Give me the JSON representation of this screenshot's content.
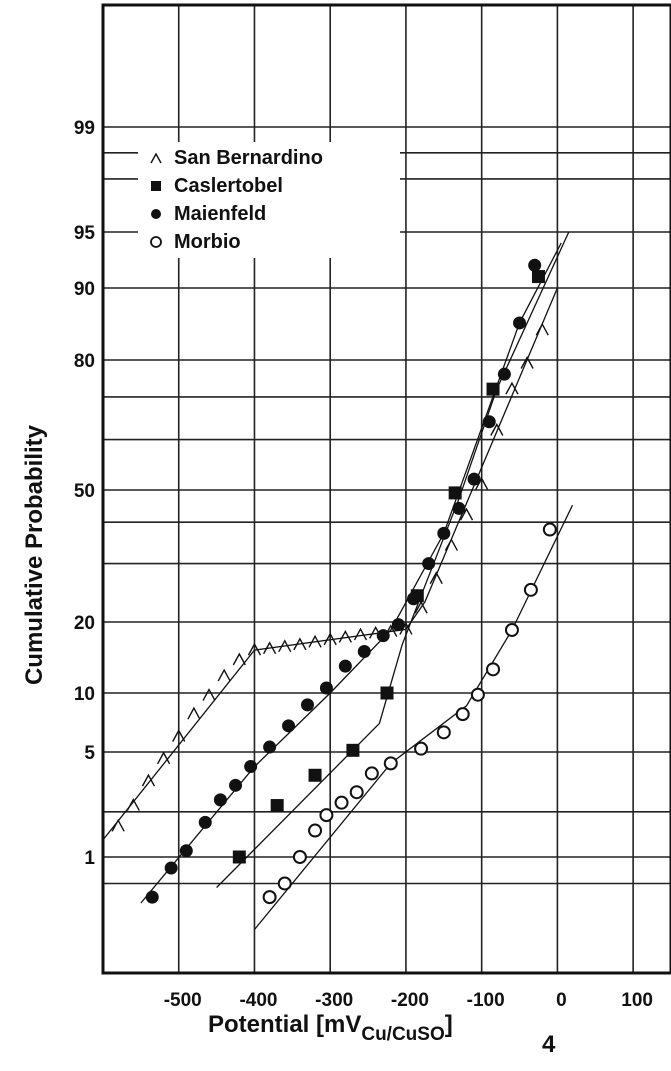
{
  "chart_data": {
    "type": "scatter",
    "xlabel": "Potential  [mV",
    "xlabel_sub": "Cu/CuSO",
    "xlabel_sub2": "4",
    "xlabel_close": "]",
    "ylabel": "Cumulative Probability",
    "xlim": [
      -600,
      150
    ],
    "x_ticks": [
      -500,
      -400,
      -300,
      -200,
      -100,
      0,
      100
    ],
    "x_tick_labels": [
      "-500",
      "-400",
      "-300",
      "-200",
      "-100",
      "0",
      "100"
    ],
    "y_scale": "probability",
    "y_ticks": [
      1,
      5,
      10,
      20,
      50,
      80,
      90,
      95,
      99
    ],
    "y_tick_labels": [
      "1",
      "5",
      "10",
      "20",
      "50",
      "80",
      "90",
      "95",
      "99"
    ],
    "grid": true,
    "legend_position": "top-left",
    "series": [
      {
        "name": "San Bernardino",
        "marker": "caret",
        "points": [
          [
            -580,
            1.6
          ],
          [
            -560,
            2.2
          ],
          [
            -540,
            3.2
          ],
          [
            -520,
            4.5
          ],
          [
            -500,
            6.0
          ],
          [
            -480,
            7.8
          ],
          [
            -460,
            9.7
          ],
          [
            -440,
            11.8
          ],
          [
            -420,
            13.8
          ],
          [
            -400,
            15.2
          ],
          [
            -380,
            15.4
          ],
          [
            -360,
            15.7
          ],
          [
            -340,
            16.0
          ],
          [
            -320,
            16.4
          ],
          [
            -300,
            16.8
          ],
          [
            -280,
            17.2
          ],
          [
            -260,
            17.6
          ],
          [
            -240,
            17.9
          ],
          [
            -220,
            18.2
          ],
          [
            -200,
            18.6
          ],
          [
            -180,
            22
          ],
          [
            -160,
            27
          ],
          [
            -140,
            34
          ],
          [
            -120,
            42
          ],
          [
            -100,
            51
          ],
          [
            -80,
            62
          ],
          [
            -60,
            72
          ],
          [
            -40,
            79
          ],
          [
            -20,
            84
          ]
        ],
        "fit": [
          [
            -600,
            1.3
          ],
          [
            -400,
            15.2
          ],
          [
            -200,
            18.6
          ],
          [
            -175,
            23
          ],
          [
            0,
            90
          ]
        ]
      },
      {
        "name": "Caslertobel",
        "marker": "square",
        "points": [
          [
            -420,
            1.0
          ],
          [
            -370,
            2.2
          ],
          [
            -320,
            3.5
          ],
          [
            -270,
            5.1
          ],
          [
            -225,
            10.0
          ],
          [
            -185,
            24
          ],
          [
            -135,
            49
          ],
          [
            -85,
            72
          ],
          [
            -25,
            91
          ]
        ],
        "fit": [
          [
            -450,
            0.45
          ],
          [
            -235,
            7.0
          ],
          [
            -205,
            16
          ],
          [
            -180,
            24
          ],
          [
            -130,
            47
          ],
          [
            -80,
            72
          ],
          [
            15,
            95
          ]
        ]
      },
      {
        "name": "Maienfeld",
        "marker": "circle-filled",
        "points": [
          [
            -535,
            0.35
          ],
          [
            -510,
            0.75
          ],
          [
            -490,
            1.1
          ],
          [
            -465,
            1.7
          ],
          [
            -445,
            2.4
          ],
          [
            -425,
            3.0
          ],
          [
            -405,
            4.0
          ],
          [
            -380,
            5.3
          ],
          [
            -355,
            6.8
          ],
          [
            -330,
            8.7
          ],
          [
            -305,
            10.5
          ],
          [
            -280,
            13.0
          ],
          [
            -255,
            15.0
          ],
          [
            -230,
            17.5
          ],
          [
            -210,
            19.5
          ],
          [
            -190,
            23.5
          ],
          [
            -170,
            30
          ],
          [
            -150,
            37
          ],
          [
            -130,
            44
          ],
          [
            -110,
            52
          ],
          [
            -90,
            64
          ],
          [
            -70,
            76
          ],
          [
            -50,
            85
          ],
          [
            -30,
            92
          ]
        ],
        "fit": [
          [
            -550,
            0.3
          ],
          [
            -400,
            4.0
          ],
          [
            -300,
            10.0
          ],
          [
            -220,
            18.5
          ],
          [
            -150,
            37
          ],
          [
            -50,
            85
          ],
          [
            5,
            94
          ]
        ]
      },
      {
        "name": "Morbio",
        "marker": "circle-open",
        "points": [
          [
            -380,
            0.35
          ],
          [
            -360,
            0.5
          ],
          [
            -340,
            1.0
          ],
          [
            -320,
            1.5
          ],
          [
            -305,
            1.9
          ],
          [
            -285,
            2.3
          ],
          [
            -265,
            2.7
          ],
          [
            -245,
            3.6
          ],
          [
            -220,
            4.2
          ],
          [
            -180,
            5.2
          ],
          [
            -150,
            6.3
          ],
          [
            -125,
            7.8
          ],
          [
            -105,
            9.8
          ],
          [
            -85,
            12.6
          ],
          [
            -60,
            18.5
          ],
          [
            -35,
            25
          ],
          [
            -10,
            38
          ]
        ],
        "fit": [
          [
            -400,
            0.15
          ],
          [
            -220,
            4.2
          ],
          [
            -120,
            8.6
          ],
          [
            -60,
            18.5
          ],
          [
            20,
            45
          ]
        ]
      }
    ]
  }
}
